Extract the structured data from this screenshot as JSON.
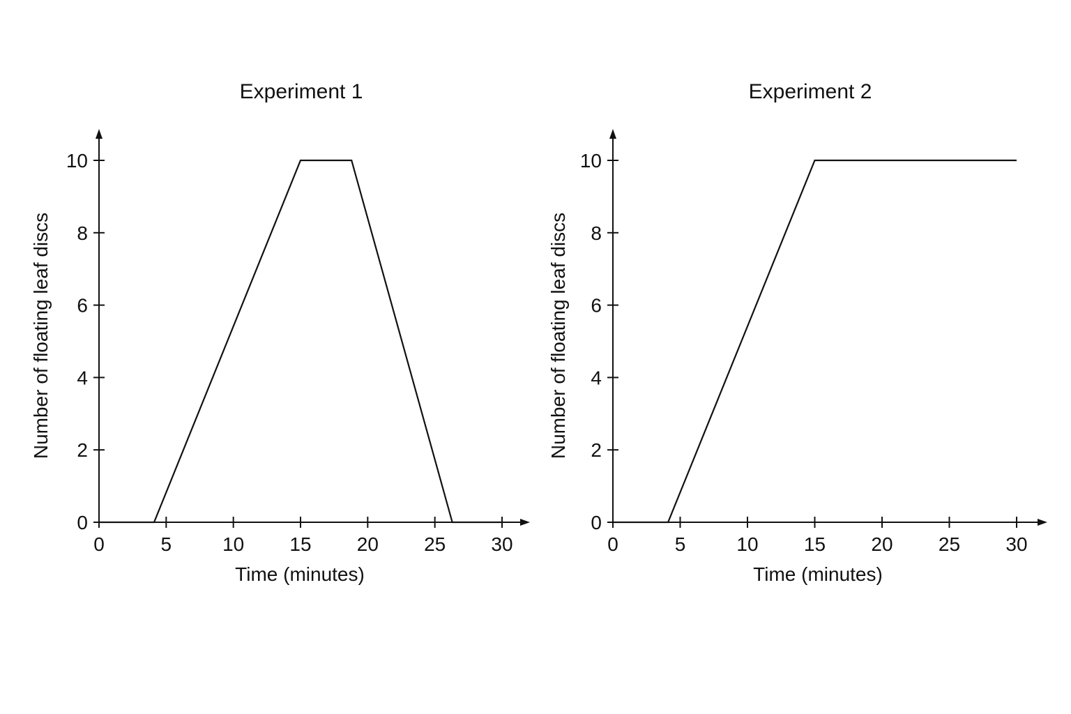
{
  "chart_data": [
    {
      "type": "line",
      "title": "Experiment 1",
      "xlabel": "Time (minutes)",
      "ylabel": "Number of floating leaf discs",
      "xlim": [
        0,
        30
      ],
      "ylim": [
        0,
        10
      ],
      "x_ticks": [
        0,
        5,
        10,
        15,
        20,
        25,
        30
      ],
      "y_ticks": [
        0,
        2,
        4,
        6,
        8,
        10
      ],
      "grid": false,
      "series": [
        {
          "x": [
            0,
            4.1,
            15,
            18.8,
            26.3,
            30
          ],
          "y": [
            0,
            0,
            10,
            10,
            0,
            0
          ]
        }
      ]
    },
    {
      "type": "line",
      "title": "Experiment 2",
      "xlabel": "Time (minutes)",
      "ylabel": "Number of floating leaf discs",
      "xlim": [
        0,
        30
      ],
      "ylim": [
        0,
        10
      ],
      "x_ticks": [
        0,
        5,
        10,
        15,
        20,
        25,
        30
      ],
      "y_ticks": [
        0,
        2,
        4,
        6,
        8,
        10
      ],
      "grid": false,
      "series": [
        {
          "x": [
            0,
            4.1,
            15,
            30
          ],
          "y": [
            0,
            0,
            10,
            10
          ]
        }
      ]
    }
  ]
}
